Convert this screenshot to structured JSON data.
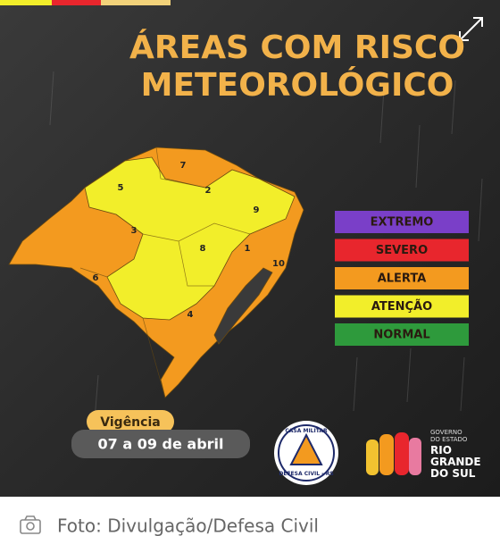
{
  "title": [
    "ÁREAS COM RISCO",
    "METEOROLÓGICO"
  ],
  "legend": [
    {
      "label": "EXTREMO",
      "color": "#7a3fc8"
    },
    {
      "label": "SEVERO",
      "color": "#e8262d"
    },
    {
      "label": "ALERTA",
      "color": "#f39a1f"
    },
    {
      "label": "ATENÇÃO",
      "color": "#f2ee2a"
    },
    {
      "label": "NORMAL",
      "color": "#2e9a3c"
    }
  ],
  "regions": [
    "1",
    "2",
    "3",
    "4",
    "5",
    "6",
    "7",
    "8",
    "9",
    "10"
  ],
  "validity": {
    "label": "Vigência",
    "dates": "07 a 09 de abril"
  },
  "seal": {
    "top": "CASA MILITAR",
    "bottom": "DEFESA CIVIL - RS"
  },
  "government": {
    "small": [
      "GOVERNO",
      "DO ESTADO"
    ],
    "big": [
      "RIO",
      "GRANDE",
      "DO SUL"
    ]
  },
  "caption": "Foto: Divulgação/Defesa Civil"
}
